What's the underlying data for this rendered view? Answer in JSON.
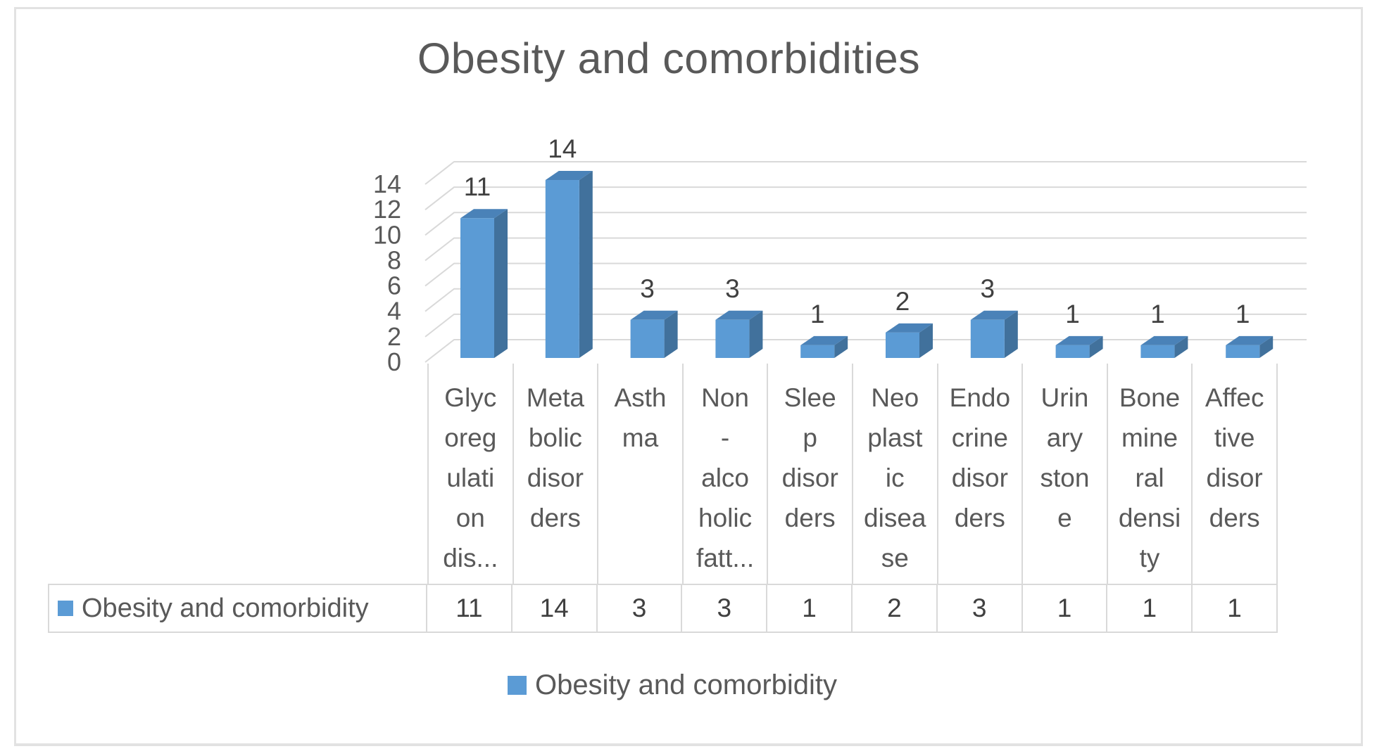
{
  "page": {
    "background": "#FFFFFF",
    "frame_border_color": "#E2E2E2"
  },
  "chart_data": {
    "type": "bar",
    "style": "3d-column",
    "title": "Obesity and comorbidities",
    "categories": [
      "Glycoregulation dis...",
      "Metabolic disorders",
      "Asthma",
      "Non-alcoholic fatt...",
      "Sleep disorders",
      "Neoplastic disease",
      "Endocrine disorders",
      "Urinary stone",
      "Bone mineral density",
      "Affective disorders"
    ],
    "categories_wrapped": [
      "Glyc\noreg\nulati\non\ndis...",
      "Meta\nbolic\ndisor\nders",
      "Asth\nma",
      "Non\n-\nalco\nholic\nfatt...",
      "Slee\np\ndisor\nders",
      "Neo\nplast\nic\ndisea\nse",
      "Endo\ncrine\ndisor\nders",
      "Urin\nary\nston\ne",
      "Bone\nmine\nral\ndensi\nty",
      "Affec\ntive\ndisor\nders"
    ],
    "series": [
      {
        "name": "Obesity and comorbidity",
        "values": [
          11,
          14,
          3,
          3,
          1,
          2,
          3,
          1,
          1,
          1
        ]
      }
    ],
    "y_axis": {
      "min": 0,
      "max": 14,
      "tick_step": 2,
      "ticks": [
        14,
        12,
        10,
        8,
        6,
        4,
        2,
        0
      ]
    },
    "xlabel": "",
    "ylabel": "",
    "grid": true,
    "legend_position": "bottom",
    "legend": {
      "label": "Obesity and comorbidity"
    },
    "colors": {
      "bar_front": "#5B9BD5",
      "bar_side": "#41719C",
      "bar_top": "#4A82B8",
      "gridline": "#D9D9D9",
      "axis_text": "#595959",
      "data_label_text": "#404040",
      "table_border": "#D9D9D9",
      "title_text": "#595959"
    }
  },
  "table": {
    "legend_label": "Obesity and comorbidity",
    "values": [
      "11",
      "14",
      "3",
      "3",
      "1",
      "2",
      "3",
      "1",
      "1",
      "1"
    ]
  }
}
